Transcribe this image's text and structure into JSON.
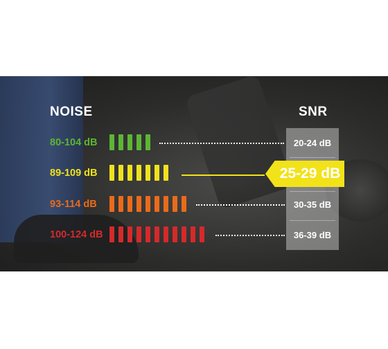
{
  "headers": {
    "noise": "NOISE",
    "snr": "SNR"
  },
  "rows": [
    {
      "noise": "80-104 dB",
      "snr": "20-24 dB",
      "bar_count": 5,
      "color": "#5db535"
    },
    {
      "noise": "89-109 dB",
      "snr": "25-29 dB",
      "bar_count": 7,
      "color": "#efe21d",
      "highlighted": true
    },
    {
      "noise": "93-114 dB",
      "snr": "30-35 dB",
      "bar_count": 9,
      "color": "#ea6b1a"
    },
    {
      "noise": "100-124 dB",
      "snr": "36-39 dB",
      "bar_count": 11,
      "color": "#d42a2a"
    }
  ],
  "colors": {
    "highlight": "#f2e21a",
    "background": "#2c2c2b",
    "snr_column": "#bebebe"
  }
}
